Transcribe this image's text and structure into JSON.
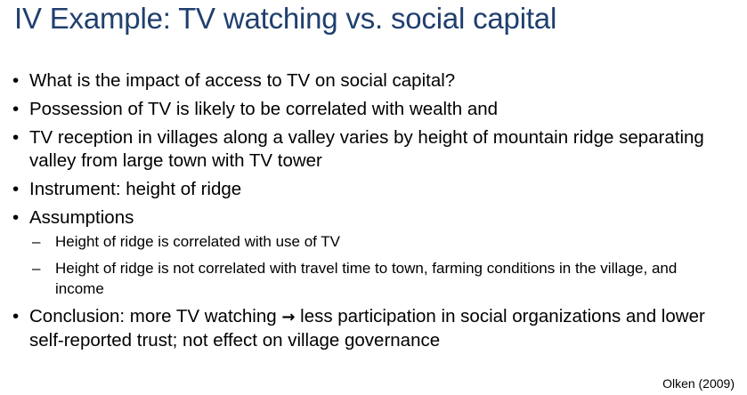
{
  "slide": {
    "title": "IV Example: TV watching vs. social capital",
    "bullets": [
      "What is the impact of access to TV on social capital?",
      "Possession of TV is likely to be correlated with wealth and",
      "TV reception in villages along a valley varies by height of mountain ridge separating valley from large town with TV tower",
      "Instrument: height of ridge",
      "Assumptions"
    ],
    "sub_bullets": [
      "Height of ridge is correlated with use of TV",
      "Height of ridge is not correlated with travel time to town, farming conditions in the village, and income"
    ],
    "conclusion": {
      "before_arrow": "Conclusion: more TV watching ",
      "arrow": "→",
      "after_arrow": " less participation in social organizations and lower self-reported trust; not effect on village governance"
    },
    "bullet_marker": "•",
    "sub_marker": "–",
    "citation": "Olken (2009)",
    "title_color": "#1f3f6e"
  }
}
